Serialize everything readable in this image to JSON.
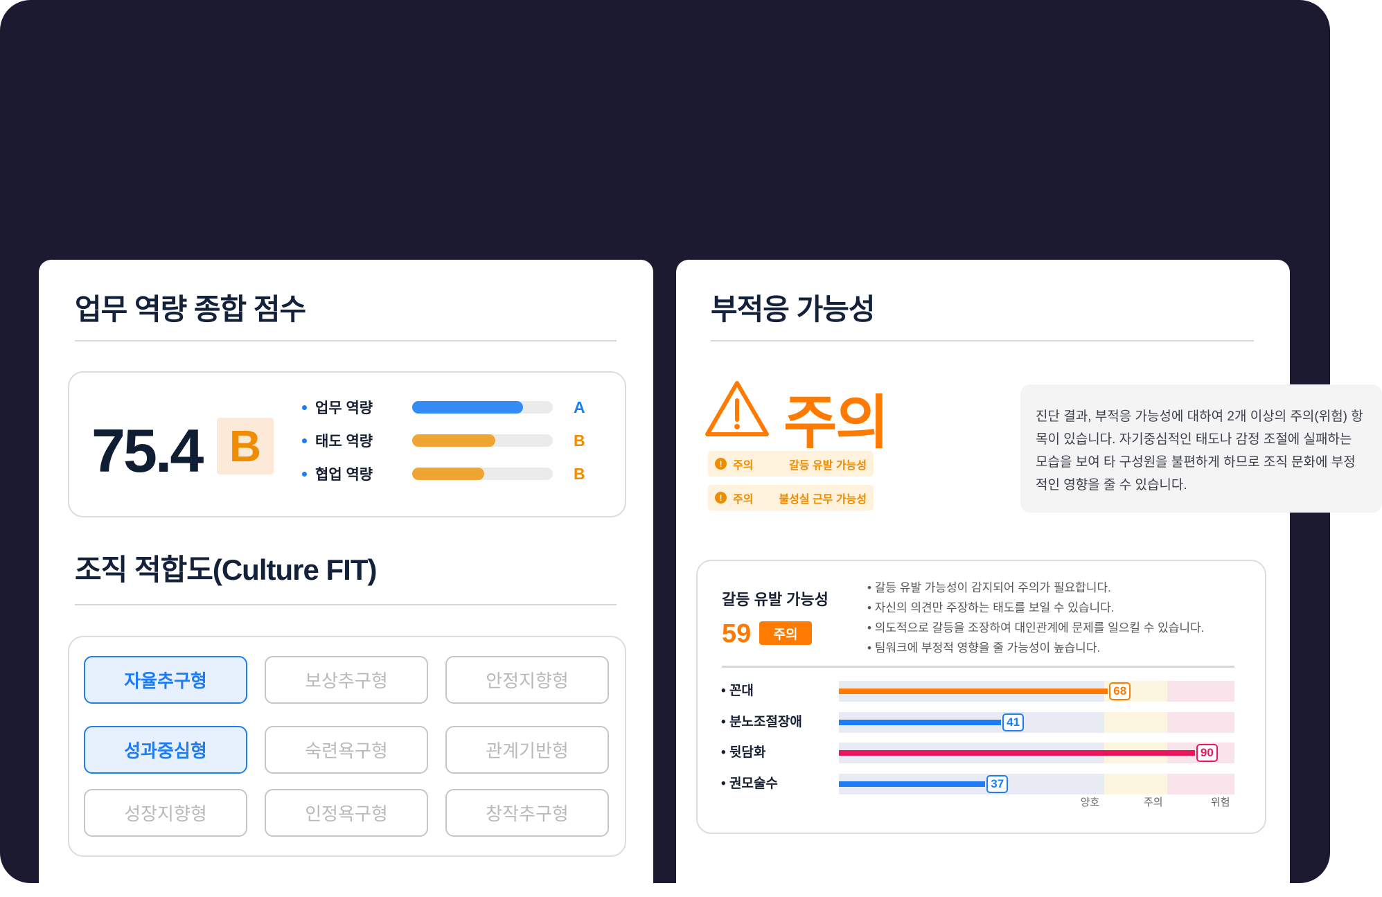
{
  "colors": {
    "background": "#1c1a30",
    "blue": "#1e7cf5",
    "orange": "#ff7a00",
    "amber": "#f0a431",
    "red": "#e8175d",
    "navy": "#0f1e33"
  },
  "left": {
    "title": "업무 역량 종합 점수",
    "score": "75.4",
    "grade": "B",
    "metrics": [
      {
        "label": "업무 역량",
        "percent": 79,
        "grade": "A",
        "color": "#338cf5",
        "grade_color": "#1e7cf5"
      },
      {
        "label": "태도 역량",
        "percent": 59,
        "grade": "B",
        "color": "#f0a431",
        "grade_color": "#f08c00"
      },
      {
        "label": "협업 역량",
        "percent": 51,
        "grade": "B",
        "color": "#f0a431",
        "grade_color": "#f08c00"
      }
    ],
    "culture_title": "조직 적합도(Culture FIT)",
    "culture_types": [
      {
        "label": "자율추구형",
        "selected": true
      },
      {
        "label": "보상추구형",
        "selected": false
      },
      {
        "label": "안정지향형",
        "selected": false
      },
      {
        "label": "성과중심형",
        "selected": true
      },
      {
        "label": "숙련욕구형",
        "selected": false
      },
      {
        "label": "관계기반형",
        "selected": false
      },
      {
        "label": "성장지향형",
        "selected": false
      },
      {
        "label": "인정욕구형",
        "selected": false
      },
      {
        "label": "창작추구형",
        "selected": false
      }
    ]
  },
  "right": {
    "title": "부적응 가능성",
    "status": "주의",
    "status_icon": "warning-triangle-icon",
    "warnings": [
      {
        "level": "주의",
        "text": "갈등 유발 가능성"
      },
      {
        "level": "주의",
        "text": "불성실 근무 가능성"
      }
    ],
    "description": "진단 결과, 부적응 가능성에 대하여 2개 이상의 주의(위험) 항목이 있습니다. 자기중심적인 태도나 감정 조절에 실패하는 모습을 보여 타 구성원을 불편하게 하므로 조직 문화에 부정적인 영향을 줄 수 있습니다.",
    "detail": {
      "title": "갈등 유발 가능성",
      "score": "59",
      "badge": "주의",
      "bullets": [
        "갈등 유발 가능성이 감지되어 주의가 필요합니다.",
        "자신의 의견만 주장하는 태도를 보일 수 있습니다.",
        "의도적으로 갈등을 조장하여 대인관계에 문제를 일으킬 수 있습니다.",
        "팀워크에 부정적 영향을 줄 가능성이 높습니다."
      ]
    }
  },
  "chart_data": {
    "type": "bar",
    "orientation": "horizontal",
    "categories": [
      "꼰대",
      "분노조절장애",
      "뒷담화",
      "권모술수"
    ],
    "values": [
      68,
      41,
      90,
      37
    ],
    "value_labels": [
      "68",
      "41",
      "90",
      "37"
    ],
    "bar_colors": [
      "#ff7a00",
      "#1e7cf5",
      "#e8175d",
      "#1e7cf5"
    ],
    "xlim": [
      0,
      100
    ],
    "zones": [
      {
        "label": "양호",
        "to": 67,
        "color": "#e8ebf3"
      },
      {
        "label": "주의",
        "to": 83,
        "color": "#fcf6e1"
      },
      {
        "label": "위험",
        "to": 100,
        "color": "#f8e4ea"
      }
    ]
  }
}
